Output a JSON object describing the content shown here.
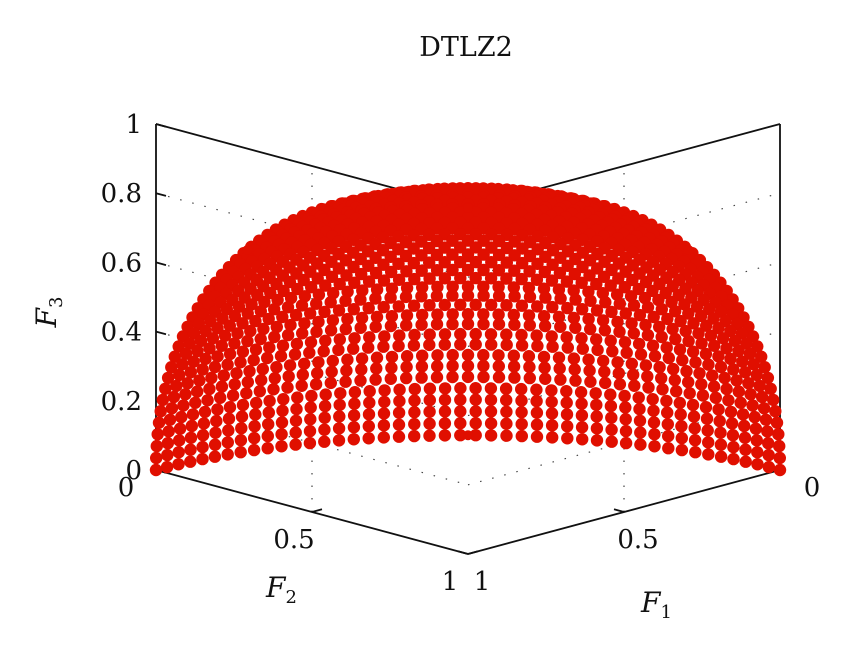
{
  "chart_data": {
    "type": "scatter",
    "projection": "3d",
    "title": "DTLZ2",
    "xlabel": "F",
    "xlabel_sub": "1",
    "ylabel": "F",
    "ylabel_sub": "2",
    "zlabel": "F",
    "zlabel_sub": "3",
    "xlim": [
      0,
      1
    ],
    "ylim": [
      0,
      1
    ],
    "zlim": [
      0,
      1
    ],
    "x_ticks": [
      "0",
      "0.5",
      "1"
    ],
    "y_ticks": [
      "0",
      "0.5",
      "1"
    ],
    "z_ticks": [
      "0",
      "0.2",
      "0.4",
      "0.6",
      "0.8",
      "1"
    ],
    "grid": true,
    "series": [
      {
        "surface": "F1^2 + F2^2 + F3^2 = 1",
        "color": "#e00f00",
        "point_grid": 45,
        "sample_points": [
          {
            "x": 1,
            "y": 0,
            "z": 0
          },
          {
            "x": 0,
            "y": 1,
            "z": 0
          },
          {
            "x": 0,
            "y": 0,
            "z": 1
          },
          {
            "x": 0.707,
            "y": 0.707,
            "z": 0
          },
          {
            "x": 0.707,
            "y": 0,
            "z": 0.707
          },
          {
            "x": 0,
            "y": 0.707,
            "z": 0.707
          },
          {
            "x": 0.577,
            "y": 0.577,
            "z": 0.577
          }
        ]
      }
    ]
  }
}
